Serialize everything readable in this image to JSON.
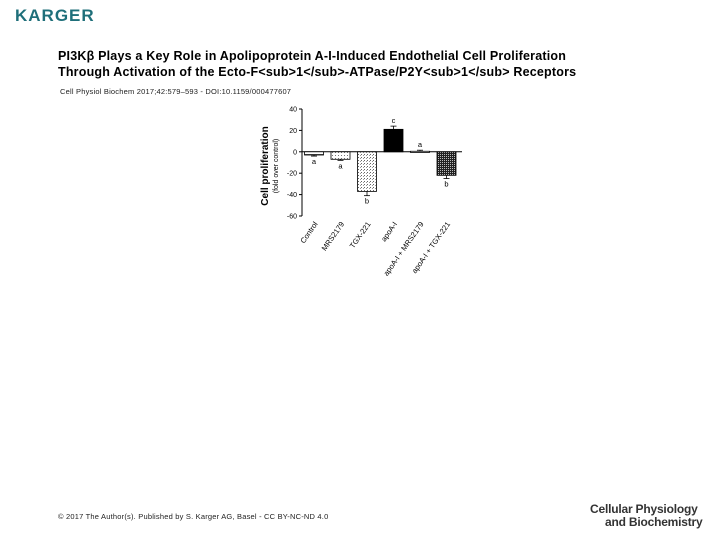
{
  "header": {
    "logo_text": "KARGER",
    "title_line1": "PI3Kβ Plays a Key Role in Apolipoprotein A-I-Induced Endothelial Cell Proliferation",
    "title_line2": "Through Activation of the Ecto-F<sub>1</sub>-ATPase/P2Y<sub>1</sub> Receptors",
    "citation": "Cell Physiol Biochem 2017;42:579–593 - DOI:10.1159/000477607"
  },
  "footer": {
    "copyright": "© 2017 The Author(s). Published by S. Karger AG, Basel - CC BY-NC-ND 4.0",
    "journal_line1": "Cellular Physiology",
    "journal_line2": "and Biochemistry"
  },
  "chart_data": {
    "type": "bar",
    "ylabel": "Cell proliferation",
    "ylabel_sub": "(fold over control)",
    "ylim": [
      -60,
      40
    ],
    "yticks": [
      40,
      20,
      0,
      -20,
      -40,
      -60
    ],
    "categories": [
      "Control",
      "MRS2179",
      "TGX-221",
      "apoA-I",
      "apoA-I + MRS2179",
      "apoA-I + TGX-221"
    ],
    "values": [
      -3,
      -7,
      -37,
      21,
      0.5,
      -22
    ],
    "errors": [
      1,
      1,
      4,
      3,
      1,
      3
    ],
    "significance": [
      "a",
      "a",
      "b",
      "c",
      "a",
      "b"
    ],
    "fills": [
      "hatch",
      "light-dots",
      "dots",
      "solid-black",
      "white",
      "dense-dots"
    ]
  }
}
